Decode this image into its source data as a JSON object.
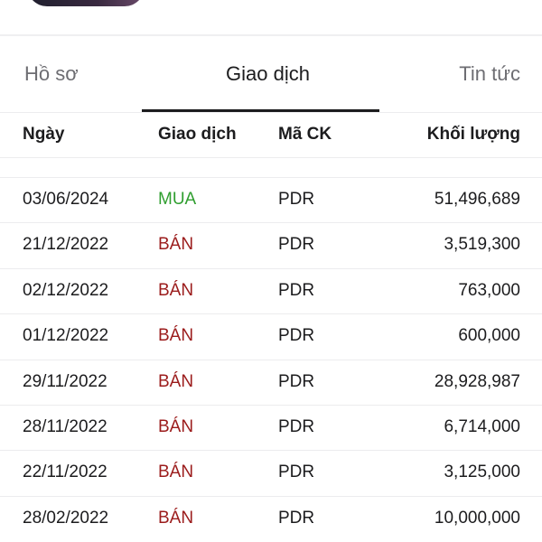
{
  "tabs": [
    {
      "label": "Hồ sơ",
      "active": false
    },
    {
      "label": "Giao dịch",
      "active": true
    },
    {
      "label": "Tin tức",
      "active": false
    }
  ],
  "table": {
    "headers": [
      "Ngày",
      "Giao dịch",
      "Mã CK",
      "Khối lượng"
    ],
    "rows": [
      {
        "date": "03/06/2024",
        "type": "MUA",
        "ticker": "PDR",
        "volume": "51,496,689"
      },
      {
        "date": "21/12/2022",
        "type": "BÁN",
        "ticker": "PDR",
        "volume": "3,519,300"
      },
      {
        "date": "02/12/2022",
        "type": "BÁN",
        "ticker": "PDR",
        "volume": "763,000"
      },
      {
        "date": "01/12/2022",
        "type": "BÁN",
        "ticker": "PDR",
        "volume": "600,000"
      },
      {
        "date": "29/11/2022",
        "type": "BÁN",
        "ticker": "PDR",
        "volume": "28,928,987"
      },
      {
        "date": "28/11/2022",
        "type": "BÁN",
        "ticker": "PDR",
        "volume": "6,714,000"
      },
      {
        "date": "22/11/2022",
        "type": "BÁN",
        "ticker": "PDR",
        "volume": "3,125,000"
      },
      {
        "date": "28/02/2022",
        "type": "BÁN",
        "ticker": "PDR",
        "volume": "10,000,000"
      }
    ]
  },
  "colors": {
    "buy": "#2f9e2f",
    "sell": "#9b1b1b",
    "accent": "#1c1c1e"
  }
}
